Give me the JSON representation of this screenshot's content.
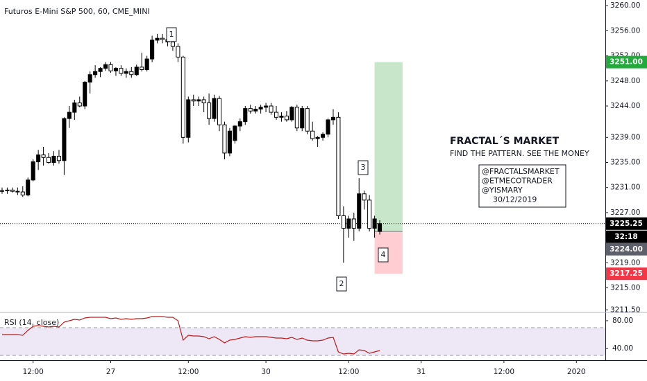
{
  "header": "Futuros E-Mini S&P 500, 60, CME_MINI",
  "chart_data": [
    {
      "type": "candlestick",
      "ohlc": [
        [
          3230.5,
          3231,
          3230,
          3230.5
        ],
        [
          3230.5,
          3231,
          3230,
          3230.6
        ],
        [
          3230.6,
          3231,
          3230.2,
          3230.4
        ],
        [
          3230.4,
          3231,
          3229.8,
          3230.3
        ],
        [
          3230.3,
          3231.2,
          3229.5,
          3229.8
        ],
        [
          3229.8,
          3232.6,
          3229.6,
          3232.2
        ],
        [
          3232.2,
          3235.5,
          3232,
          3235.1
        ],
        [
          3235.1,
          3237,
          3233.8,
          3236.2
        ],
        [
          3236.2,
          3237.5,
          3234.5,
          3235.8
        ],
        [
          3235.8,
          3236.5,
          3234.8,
          3235
        ],
        [
          3235,
          3236.8,
          3234.5,
          3236
        ],
        [
          3236,
          3237,
          3234.8,
          3235.3
        ],
        [
          3235.3,
          3242.2,
          3233,
          3242
        ],
        [
          3242,
          3244,
          3240.5,
          3243
        ],
        [
          3243,
          3245,
          3241.8,
          3244.5
        ],
        [
          3244.5,
          3245.5,
          3243.8,
          3244
        ],
        [
          3244,
          3248,
          3243.5,
          3247.8
        ],
        [
          3247.8,
          3249.5,
          3246,
          3249
        ],
        [
          3249,
          3250.5,
          3248.5,
          3249.5
        ],
        [
          3249.5,
          3250.2,
          3248.6,
          3250
        ],
        [
          3250,
          3251,
          3249.6,
          3250.6
        ],
        [
          3250.6,
          3251,
          3249.3,
          3249.6
        ],
        [
          3249.6,
          3250.2,
          3248.8,
          3250
        ],
        [
          3250,
          3250.5,
          3248.8,
          3249.2
        ],
        [
          3249.2,
          3250,
          3248.5,
          3249.5
        ],
        [
          3249.5,
          3250.2,
          3248.5,
          3249
        ],
        [
          3249,
          3250.6,
          3248.8,
          3250.2
        ],
        [
          3250.2,
          3252.5,
          3249.5,
          3249.8
        ],
        [
          3249.8,
          3252,
          3249.5,
          3251.5
        ],
        [
          3251.5,
          3255.2,
          3251,
          3254.5
        ],
        [
          3254.5,
          3255.5,
          3254,
          3254.8
        ],
        [
          3254.8,
          3255.5,
          3254,
          3254.6
        ],
        [
          3254.6,
          3255.5,
          3253.5,
          3254.2
        ],
        [
          3254.2,
          3256,
          3252.8,
          3253.5
        ],
        [
          3253.5,
          3254,
          3251,
          3251.8
        ],
        [
          3251.8,
          3252,
          3238,
          3239
        ],
        [
          3239,
          3245.5,
          3238.2,
          3245
        ],
        [
          3245,
          3245.8,
          3244,
          3244.8
        ],
        [
          3244.8,
          3245.5,
          3244,
          3245
        ],
        [
          3245,
          3245.5,
          3243,
          3244.5
        ],
        [
          3244.5,
          3246,
          3241,
          3242
        ],
        [
          3242,
          3245.8,
          3241.5,
          3245.2
        ],
        [
          3245.2,
          3245.6,
          3240,
          3241
        ],
        [
          3241,
          3241.5,
          3235.5,
          3236.5
        ],
        [
          3236.5,
          3240.5,
          3236,
          3240
        ],
        [
          3238.5,
          3241,
          3238,
          3240.8
        ],
        [
          3240.8,
          3242,
          3240,
          3241.5
        ],
        [
          3241.5,
          3244,
          3241,
          3243.6
        ],
        [
          3243.6,
          3244.2,
          3242.8,
          3243.2
        ],
        [
          3243.2,
          3244,
          3242.8,
          3243.5
        ],
        [
          3243.5,
          3244.2,
          3242.8,
          3243.8
        ],
        [
          3243.8,
          3244.5,
          3243,
          3244
        ],
        [
          3244,
          3244.5,
          3242.6,
          3243
        ],
        [
          3243,
          3244,
          3241.8,
          3242.2
        ],
        [
          3242.2,
          3243,
          3241.5,
          3242.4
        ],
        [
          3242.4,
          3243.2,
          3241.5,
          3241.8
        ],
        [
          3241.8,
          3244,
          3241.5,
          3243.8
        ],
        [
          3243.8,
          3244.2,
          3240,
          3240.5
        ],
        [
          3240.5,
          3244,
          3240,
          3243.6
        ],
        [
          3243.6,
          3244,
          3239.5,
          3240
        ],
        [
          3240,
          3241.5,
          3238.5,
          3238.8
        ],
        [
          3238.8,
          3239.2,
          3237.5,
          3239
        ],
        [
          3239,
          3239.8,
          3238.5,
          3239.5
        ],
        [
          3239.5,
          3242,
          3239,
          3241.8
        ],
        [
          3241.8,
          3243.5,
          3241,
          3242.2
        ],
        [
          3242.2,
          3243,
          3226,
          3226.5
        ],
        [
          3226.5,
          3228,
          3219,
          3224.5
        ],
        [
          3224.5,
          3226.5,
          3223,
          3226
        ],
        [
          3226,
          3227,
          3222.5,
          3224.5
        ],
        [
          3224.5,
          3232.5,
          3224,
          3230
        ],
        [
          3230,
          3230.5,
          3227.5,
          3229
        ],
        [
          3229,
          3229.8,
          3224,
          3224.5
        ],
        [
          3224.5,
          3226.5,
          3223,
          3226
        ],
        [
          3224,
          3225.8,
          3223.5,
          3225.25
        ]
      ],
      "up_color": "#000000",
      "down_color": "#ffffff",
      "xlim": [
        -0.4,
        116.6
      ],
      "xticks": [
        {
          "value": 6,
          "label": "12:00"
        },
        {
          "value": 21,
          "label": "27"
        },
        {
          "value": 36,
          "label": "12:00"
        },
        {
          "value": 51,
          "label": "30"
        },
        {
          "value": 67,
          "label": "12:00"
        },
        {
          "value": 81,
          "label": "31"
        },
        {
          "value": 97,
          "label": "12:00"
        },
        {
          "value": 111,
          "label": "2020"
        }
      ],
      "ylim": [
        3211.2,
        3260.9
      ],
      "yticks": [
        {
          "value": 3260,
          "label": "3260.00"
        },
        {
          "value": 3256,
          "label": "3256.00"
        },
        {
          "value": 3252,
          "label": "3252.00"
        },
        {
          "value": 3248,
          "label": "3248.00"
        },
        {
          "value": 3244,
          "label": "3244.00"
        },
        {
          "value": 3239,
          "label": "3239.00"
        },
        {
          "value": 3235,
          "label": "3235.00"
        },
        {
          "value": 3231,
          "label": "3231.00"
        },
        {
          "value": 3227,
          "label": "3227.00"
        },
        {
          "value": 3219,
          "label": "3219.00"
        },
        {
          "value": 3215,
          "label": "3215.00"
        },
        {
          "value": 3211.5,
          "label": "3211.50"
        }
      ],
      "price_labels": [
        {
          "value": 3251,
          "label": "3251.00",
          "color": "#22ab3b"
        },
        {
          "value": 3225.25,
          "label": "3225.25",
          "color": "#000000"
        },
        {
          "value": 3224,
          "label": "3224.00",
          "color": "#5d606b"
        },
        {
          "value": 3217.25,
          "label": "3217.25",
          "color": "#f23645"
        }
      ],
      "countdown": "32:18",
      "current_price": 3225.25,
      "position": {
        "entry": 3224,
        "target": 3251,
        "stop": 3217.25,
        "x": [
          72,
          77.4
        ],
        "target_color": "#c8e6c9",
        "stop_color": "#ffcdd2"
      }
    },
    {
      "type": "line",
      "label": "RSI (14, close)",
      "color": "#b71c1c",
      "values": [
        60,
        60,
        60,
        60,
        59,
        66,
        72,
        73,
        72,
        71,
        72,
        71,
        78,
        80,
        82,
        81,
        84,
        85,
        85,
        85,
        85,
        83,
        84,
        82,
        83,
        82,
        83,
        83,
        84,
        86,
        86,
        86,
        85,
        85,
        80,
        52,
        59,
        58,
        58,
        57,
        54,
        57,
        53,
        48,
        52,
        53,
        55,
        57,
        56,
        57,
        57,
        57,
        56,
        55,
        55,
        54,
        56,
        53,
        55,
        52,
        51,
        51,
        52,
        55,
        56,
        35,
        32,
        33,
        32,
        38,
        37,
        33,
        35,
        37
      ],
      "ylim": [
        23,
        91
      ],
      "yticks": [
        {
          "value": 80,
          "label": "80.00"
        },
        {
          "value": 40,
          "label": "40.00"
        }
      ],
      "band": [
        30,
        70
      ],
      "band_color": "#ede7f6"
    }
  ],
  "annotations": {
    "points": [
      "1",
      "2",
      "3",
      "4"
    ],
    "title": "FRACTAL´S MARKET",
    "subtitle": "FIND THE PATTERN. SEE THE MONEY",
    "credits": [
      "@FRACTALSMARKET",
      "@ETMECOTRADER",
      "@YISMARY",
      "30/12/2019"
    ]
  }
}
